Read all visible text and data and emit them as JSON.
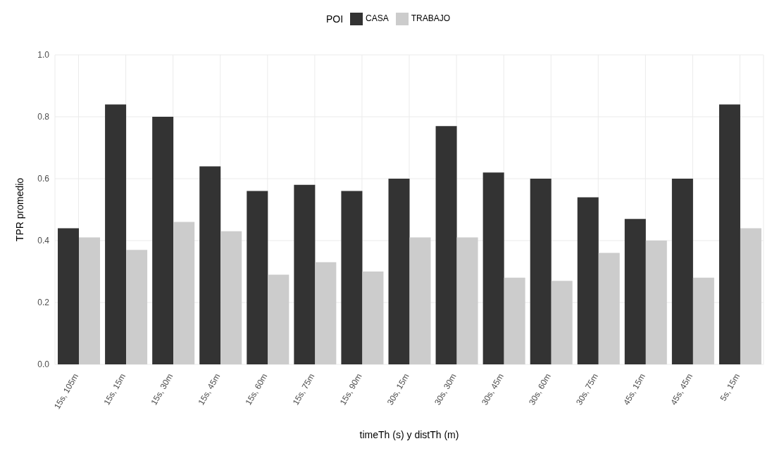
{
  "chart_data": {
    "type": "bar",
    "xlabel": "timeTh (s) y distTh (m)",
    "ylabel": "TPR promedio",
    "legend_title": "POI",
    "legend": "top",
    "grid": true,
    "categories": [
      "15s, 105m",
      "15s, 15m",
      "15s, 30m",
      "15s, 45m",
      "15s, 60m",
      "15s, 75m",
      "15s, 90m",
      "30s, 15m",
      "30s, 30m",
      "30s, 45m",
      "30s, 60m",
      "30s, 75m",
      "45s, 15m",
      "45s, 45m",
      "5s, 15m"
    ],
    "series": [
      {
        "name": "CASA",
        "color": "#333333",
        "values": [
          0.44,
          0.84,
          0.8,
          0.64,
          0.56,
          0.58,
          0.56,
          0.6,
          0.77,
          0.62,
          0.6,
          0.54,
          0.47,
          0.6,
          0.84
        ]
      },
      {
        "name": "TRABAJO",
        "color": "#cccccc",
        "values": [
          0.41,
          0.37,
          0.46,
          0.43,
          0.29,
          0.33,
          0.3,
          0.41,
          0.41,
          0.28,
          0.27,
          0.36,
          0.4,
          0.28,
          0.44
        ]
      }
    ],
    "ylim": [
      0,
      1.0
    ],
    "yticks": [
      {
        "value": 0,
        "label": "0.0"
      },
      {
        "value": 0.2,
        "label": "0.2"
      },
      {
        "value": 0.4,
        "label": "0.4"
      },
      {
        "value": 0.6,
        "label": "0.6"
      },
      {
        "value": 0.8,
        "label": "0.8"
      },
      {
        "value": 1.0,
        "label": "1.0"
      }
    ]
  }
}
